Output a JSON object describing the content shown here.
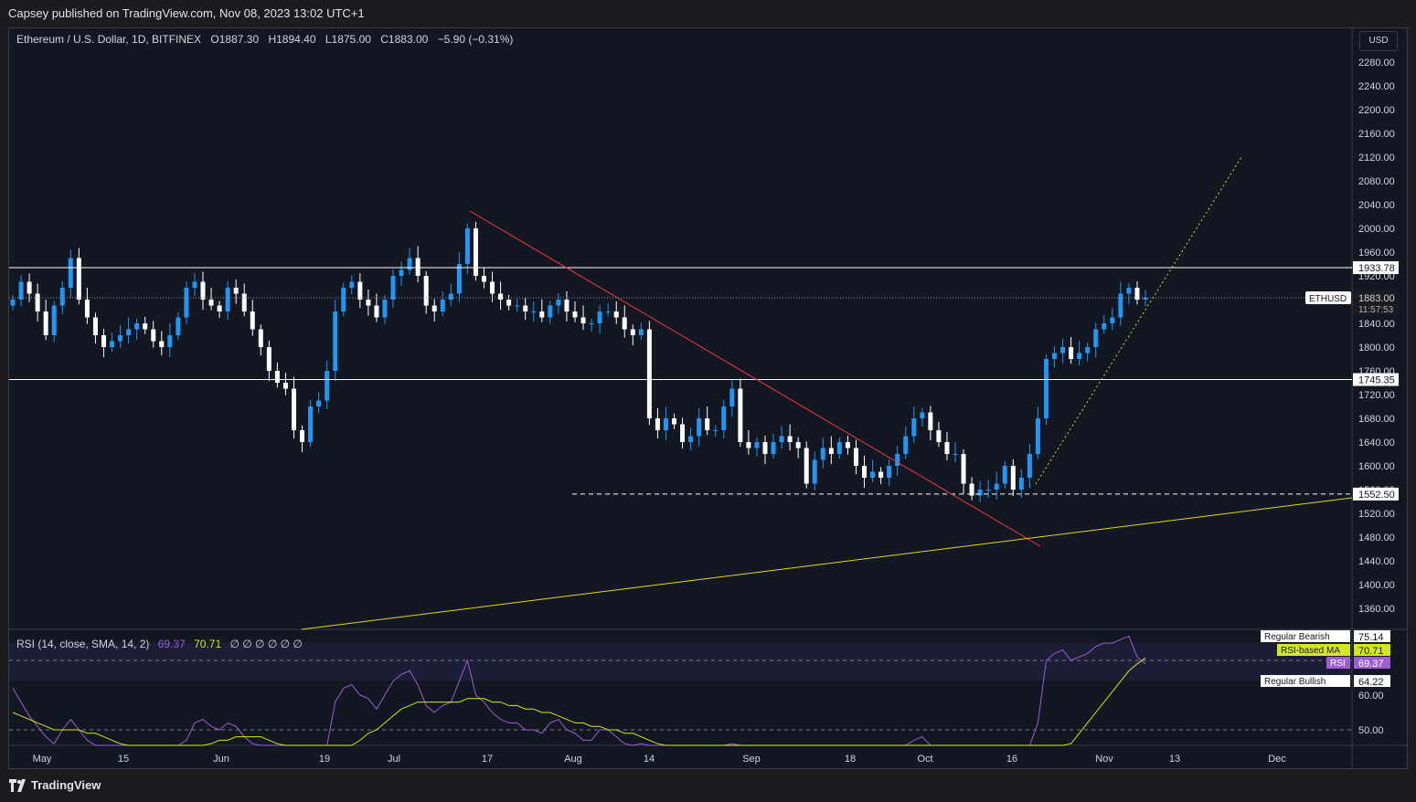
{
  "header": {
    "published": "Capsey published on TradingView.com, Nov 08, 2023 13:02 UTC+1"
  },
  "legend": {
    "symbol": "Ethereum / U.S. Dollar, 1D, BITFINEX",
    "open": "O1887.30",
    "high": "H1894.40",
    "low": "L1875.00",
    "close": "C1883.00",
    "change": "−5.90 (−0.31%)"
  },
  "currency_label": "USD",
  "price_axis": {
    "ticks": [
      "2280.00",
      "2240.00",
      "2200.00",
      "2160.00",
      "2120.00",
      "2080.00",
      "2040.00",
      "2000.00",
      "1960.00",
      "1920.00",
      "1880.00",
      "1840.00",
      "1800.00",
      "1760.00",
      "1720.00",
      "1680.00",
      "1640.00",
      "1600.00",
      "1560.00",
      "1520.00",
      "1480.00",
      "1440.00",
      "1400.00",
      "1360.00"
    ],
    "level_labels": [
      "1933.78",
      "1745.35",
      "1552.50"
    ],
    "symbol_tag": "ETHUSD",
    "last_price": "1883.00",
    "countdown": "11:57:53"
  },
  "rsi": {
    "title": "RSI (14, close, SMA, 14, 2)",
    "value": "69.37",
    "ma_value": "70.71",
    "flags": "∅ ∅ ∅ ∅ ∅ ∅",
    "tags": [
      {
        "label": "Regular Bearish",
        "value": "75.14"
      },
      {
        "label": "RSI-based MA",
        "value": "70.71"
      },
      {
        "label": "RSI",
        "value": "69.37"
      },
      {
        "label": "Regular Bullish",
        "value": "64.22"
      }
    ],
    "axis_ticks": [
      "60.00",
      "50.00"
    ]
  },
  "time_axis": {
    "labels": [
      "May",
      "15",
      "Jun",
      "19",
      "Jul",
      "17",
      "Aug",
      "14",
      "Sep",
      "18",
      "Oct",
      "16",
      "Nov",
      "13",
      "Dec"
    ]
  },
  "footer": {
    "brand": "TradingView"
  },
  "colors": {
    "background": "#131722",
    "up": "#2196f3",
    "down": "#ffffff",
    "downtrend": "#f23645",
    "support_line": "#e8d41a",
    "rsi_line": "#9c5fd6",
    "rsi_ma": "#d4e81a"
  },
  "chart_data": {
    "type": "candlestick",
    "symbol": "ETHUSD",
    "timeframe": "1D",
    "ylim": [
      1330,
      2300
    ],
    "horizontal_levels": [
      1933.78,
      1745.35,
      1552.5
    ],
    "last_close": 1883.0,
    "close_series": [
      1880,
      1910,
      1890,
      1860,
      1820,
      1870,
      1900,
      1950,
      1880,
      1850,
      1820,
      1800,
      1810,
      1820,
      1830,
      1840,
      1830,
      1810,
      1800,
      1820,
      1850,
      1900,
      1910,
      1880,
      1870,
      1860,
      1900,
      1890,
      1860,
      1830,
      1800,
      1760,
      1740,
      1730,
      1660,
      1640,
      1700,
      1710,
      1760,
      1860,
      1900,
      1910,
      1880,
      1870,
      1850,
      1880,
      1920,
      1930,
      1950,
      1920,
      1870,
      1860,
      1880,
      1890,
      1940,
      2000,
      1920,
      1910,
      1890,
      1880,
      1870,
      1870,
      1860,
      1860,
      1850,
      1870,
      1880,
      1860,
      1850,
      1840,
      1840,
      1860,
      1860,
      1850,
      1830,
      1820,
      1830,
      1680,
      1660,
      1680,
      1670,
      1640,
      1650,
      1680,
      1660,
      1660,
      1700,
      1730,
      1640,
      1630,
      1640,
      1620,
      1640,
      1650,
      1640,
      1630,
      1570,
      1610,
      1630,
      1620,
      1640,
      1630,
      1600,
      1580,
      1590,
      1580,
      1600,
      1620,
      1650,
      1680,
      1690,
      1660,
      1640,
      1620,
      1620,
      1570,
      1550,
      1560,
      1560,
      1570,
      1600,
      1560,
      1580,
      1620,
      1680,
      1780,
      1790,
      1800,
      1780,
      1790,
      1800,
      1830,
      1840,
      1850,
      1890,
      1900,
      1880,
      1883
    ],
    "rsi_values": [
      62,
      58,
      54,
      51,
      48,
      46,
      50,
      53,
      50,
      47,
      44,
      42,
      41,
      40,
      41,
      43,
      44,
      43,
      40,
      39,
      41,
      47,
      52,
      53,
      51,
      50,
      52,
      51,
      48,
      46,
      42,
      38,
      36,
      35,
      30,
      29,
      35,
      37,
      43,
      58,
      62,
      63,
      60,
      59,
      56,
      60,
      64,
      66,
      67,
      63,
      57,
      55,
      57,
      58,
      64,
      70,
      60,
      58,
      55,
      53,
      52,
      52,
      50,
      50,
      49,
      52,
      53,
      50,
      49,
      47,
      47,
      50,
      50,
      48,
      46,
      45,
      46,
      31,
      29,
      33,
      32,
      29,
      31,
      36,
      34,
      34,
      40,
      46,
      35,
      34,
      35,
      33,
      36,
      37,
      36,
      35,
      28,
      34,
      37,
      36,
      39,
      38,
      34,
      31,
      33,
      32,
      35,
      38,
      42,
      47,
      48,
      44,
      40,
      37,
      37,
      30,
      28,
      30,
      30,
      32,
      37,
      31,
      35,
      42,
      52,
      70,
      72,
      73,
      70,
      71,
      72,
      74,
      75,
      75,
      76,
      77,
      71,
      69
    ],
    "rsi_ma_values": [
      55,
      54,
      53,
      52,
      51,
      50,
      50,
      50,
      50,
      49,
      49,
      48,
      47,
      46,
      45,
      44,
      44,
      44,
      43,
      43,
      43,
      43,
      44,
      45,
      46,
      47,
      47,
      48,
      48,
      48,
      48,
      47,
      46,
      45,
      44,
      42,
      41,
      40,
      40,
      41,
      43,
      45,
      47,
      49,
      50,
      52,
      54,
      56,
      57,
      58,
      58,
      58,
      58,
      58,
      58,
      59,
      59,
      59,
      58,
      58,
      57,
      57,
      56,
      56,
      55,
      55,
      54,
      53,
      52,
      52,
      51,
      51,
      50,
      50,
      49,
      49,
      48,
      47,
      46,
      44,
      43,
      42,
      41,
      40,
      39,
      38,
      37,
      37,
      36,
      36,
      35,
      35,
      35,
      35,
      35,
      35,
      34,
      34,
      34,
      34,
      35,
      35,
      35,
      35,
      34,
      34,
      34,
      34,
      35,
      36,
      37,
      38,
      38,
      39,
      39,
      39,
      38,
      37,
      36,
      35,
      34,
      34,
      34,
      34,
      35,
      37,
      40,
      43,
      46,
      49,
      52,
      55,
      58,
      61,
      64,
      67,
      69,
      70.71
    ],
    "trendlines": [
      {
        "name": "downtrend",
        "from": [
          "Jul 13",
          2030
        ],
        "to": [
          "Oct 22",
          1465
        ]
      },
      {
        "name": "long-term support",
        "from": [
          "Jun 05",
          1330
        ],
        "to": [
          "Dec 31",
          1548
        ]
      },
      {
        "name": "rising trend",
        "from": [
          "Oct 22",
          1555
        ],
        "to": [
          "Dec 01",
          2120
        ]
      }
    ]
  }
}
